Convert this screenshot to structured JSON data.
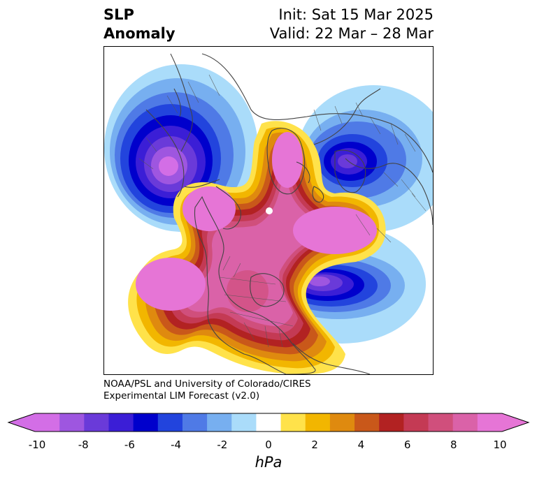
{
  "title": {
    "variable": [
      "SLP",
      "Anomaly"
    ],
    "init": "Init: Sat 15 Mar 2025",
    "valid": "Valid: 22 Mar – 28 Mar"
  },
  "credit": {
    "line1": "NOAA/PSL and University of Colorado/CIRES",
    "line2": "Experimental LIM Forecast (v2.0)"
  },
  "colorbar": {
    "unit": "hPa",
    "extend": "both",
    "levels": [
      -10,
      -9,
      -8,
      -7,
      -6,
      -5,
      -4,
      -3,
      -2,
      -1,
      1,
      2,
      3,
      4,
      5,
      6,
      7,
      8,
      9,
      10
    ],
    "colors": [
      "#d36ee6",
      "#9e56e0",
      "#6a3ad9",
      "#3b1ed6",
      "#0000cc",
      "#2244dd",
      "#4f7ae6",
      "#77aff0",
      "#aadcfa",
      "#ffffff",
      "#ffe24a",
      "#f2b600",
      "#df8a0f",
      "#c9581a",
      "#b22222",
      "#c43a54",
      "#d04f7c",
      "#da62a8",
      "#e675d6"
    ],
    "under_color": "#d36ee6",
    "over_color": "#e675d6",
    "tick_values": [
      -10,
      -8,
      -6,
      -4,
      -2,
      0,
      2,
      4,
      6,
      8,
      10
    ],
    "tick_labels": [
      "-10",
      "-8",
      "-6",
      "-4",
      "-2",
      "0",
      "2",
      "4",
      "6",
      "8",
      "10"
    ]
  },
  "map": {
    "projection": "north-polar-stereographic",
    "features": [
      {
        "name": "positive-anomaly-north-america",
        "peak_hpa": 10
      },
      {
        "name": "positive-anomaly-north-pacific-gulf-of-alaska",
        "peak_hpa": 10
      },
      {
        "name": "positive-anomaly-arctic-greenland",
        "peak_hpa": 10
      },
      {
        "name": "positive-anomaly-north-atlantic-to-scandinavia",
        "peak_hpa": 10
      },
      {
        "name": "positive-anomaly-bering-sea-alaska",
        "peak_hpa": 10
      },
      {
        "name": "negative-anomaly-eurasia-ural-region",
        "peak_hpa": -10
      },
      {
        "name": "negative-anomaly-siberia",
        "peak_hpa": -8
      },
      {
        "name": "negative-anomaly-western-atlantic",
        "peak_hpa": -10
      }
    ]
  }
}
